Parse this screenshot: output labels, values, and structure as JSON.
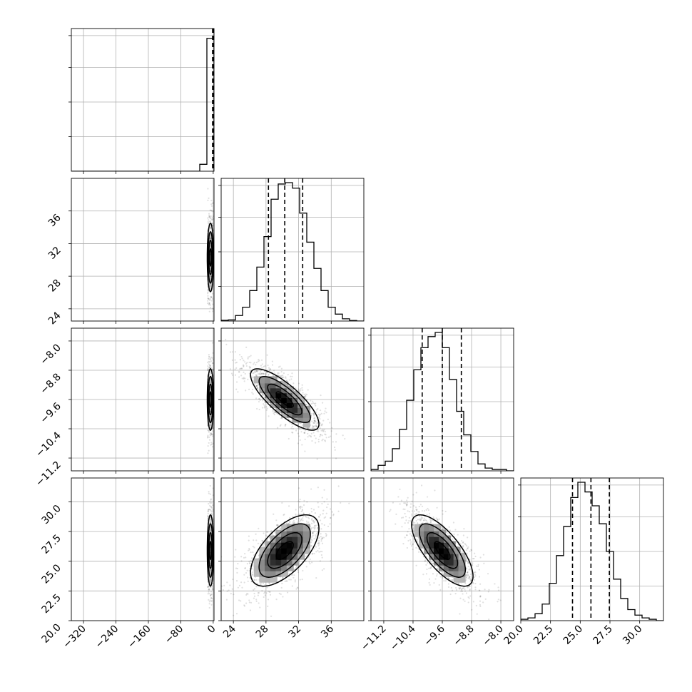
{
  "chart_data": {
    "type": "corner",
    "grid": true,
    "params": [
      {
        "range": [
          -350,
          2
        ],
        "ticks": [
          -320,
          -240,
          -160,
          -80,
          0
        ],
        "tick_labels": [
          "−320",
          "−240",
          "−160",
          "−80",
          "0"
        ],
        "quantiles": [
          -1.5,
          0.0,
          1.0
        ],
        "hist": [
          0,
          0,
          0,
          0,
          0,
          0,
          0,
          0,
          0,
          0,
          0,
          0,
          0,
          0,
          0,
          0,
          0,
          0,
          0.05,
          0.96
        ]
      },
      {
        "range": [
          22.5,
          40.0
        ],
        "ticks": [
          24,
          28,
          32,
          36
        ],
        "tick_labels": [
          "24",
          "28",
          "32",
          "36"
        ],
        "quantiles": [
          28.3,
          30.3,
          32.5
        ],
        "hist": [
          0.005,
          0.008,
          0.04,
          0.1,
          0.22,
          0.39,
          0.61,
          0.88,
          0.99,
          1.0,
          0.96,
          0.78,
          0.57,
          0.38,
          0.22,
          0.1,
          0.05,
          0.016,
          0.004,
          0.0
        ]
      },
      {
        "range": [
          -11.55,
          -7.65
        ],
        "ticks": [
          -11.2,
          -10.4,
          -9.6,
          -8.8,
          -8.0
        ],
        "tick_labels": [
          "−11.2",
          "−10.4",
          "−9.6",
          "−8.8",
          "−8.0"
        ],
        "quantiles": [
          -10.15,
          -9.6,
          -9.08
        ],
        "hist": [
          0.01,
          0.04,
          0.07,
          0.16,
          0.3,
          0.51,
          0.73,
          0.89,
          0.97,
          1.0,
          0.89,
          0.66,
          0.43,
          0.26,
          0.14,
          0.05,
          0.02,
          0.01,
          0.01,
          0.0
        ]
      },
      {
        "range": [
          20.0,
          32.0
        ],
        "ticks": [
          20.0,
          22.5,
          25.0,
          27.5,
          30.0
        ],
        "tick_labels": [
          "20.0",
          "22.5",
          "25.0",
          "27.5",
          "30.0"
        ],
        "quantiles": [
          24.35,
          25.9,
          27.45
        ],
        "hist": [
          0.01,
          0.02,
          0.05,
          0.12,
          0.27,
          0.47,
          0.68,
          0.89,
          1.0,
          0.93,
          0.83,
          0.7,
          0.5,
          0.3,
          0.16,
          0.08,
          0.04,
          0.02,
          0.01,
          0.0
        ]
      }
    ],
    "pairs": [
      {
        "row": 1,
        "col": 0,
        "center": [
          0,
          30.3
        ],
        "sd": [
          1.2,
          2.1
        ],
        "corr": 0.0
      },
      {
        "row": 2,
        "col": 0,
        "center": [
          0,
          -9.6
        ],
        "sd": [
          1.2,
          0.42
        ],
        "corr": 0.0
      },
      {
        "row": 3,
        "col": 0,
        "center": [
          0,
          25.9
        ],
        "sd": [
          1.2,
          1.5
        ],
        "corr": 0.0
      },
      {
        "row": 2,
        "col": 1,
        "center": [
          30.3,
          -9.6
        ],
        "sd": [
          2.1,
          0.42
        ],
        "corr": -0.8
      },
      {
        "row": 3,
        "col": 1,
        "center": [
          30.3,
          25.9
        ],
        "sd": [
          2.1,
          1.5
        ],
        "corr": 0.62
      },
      {
        "row": 3,
        "col": 2,
        "center": [
          -9.6,
          25.9
        ],
        "sd": [
          0.42,
          1.5
        ],
        "corr": -0.72
      }
    ]
  }
}
